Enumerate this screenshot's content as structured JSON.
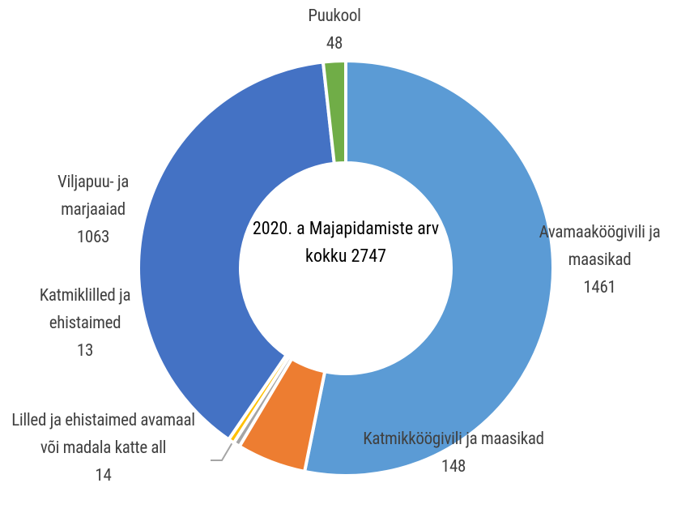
{
  "chart_data": {
    "type": "donut",
    "title": "2020. a Majapidamiste arv kokku 2747",
    "categories": [
      "Avamaaköögivili ja maasikad",
      "Katmikköögivili ja maasikad",
      "Lilled ja ehistaimed avamaal või madala katte all",
      "Katmiklilled ja ehistaimed",
      "Viljapuu- ja marjaaiad",
      "Puukool"
    ],
    "values": [
      1461,
      148,
      14,
      13,
      1063,
      48
    ],
    "colors": [
      "#5b9bd5",
      "#ed7d31",
      "#a5a5a5",
      "#ffc000",
      "#4472c4",
      "#70ad47"
    ]
  }
}
